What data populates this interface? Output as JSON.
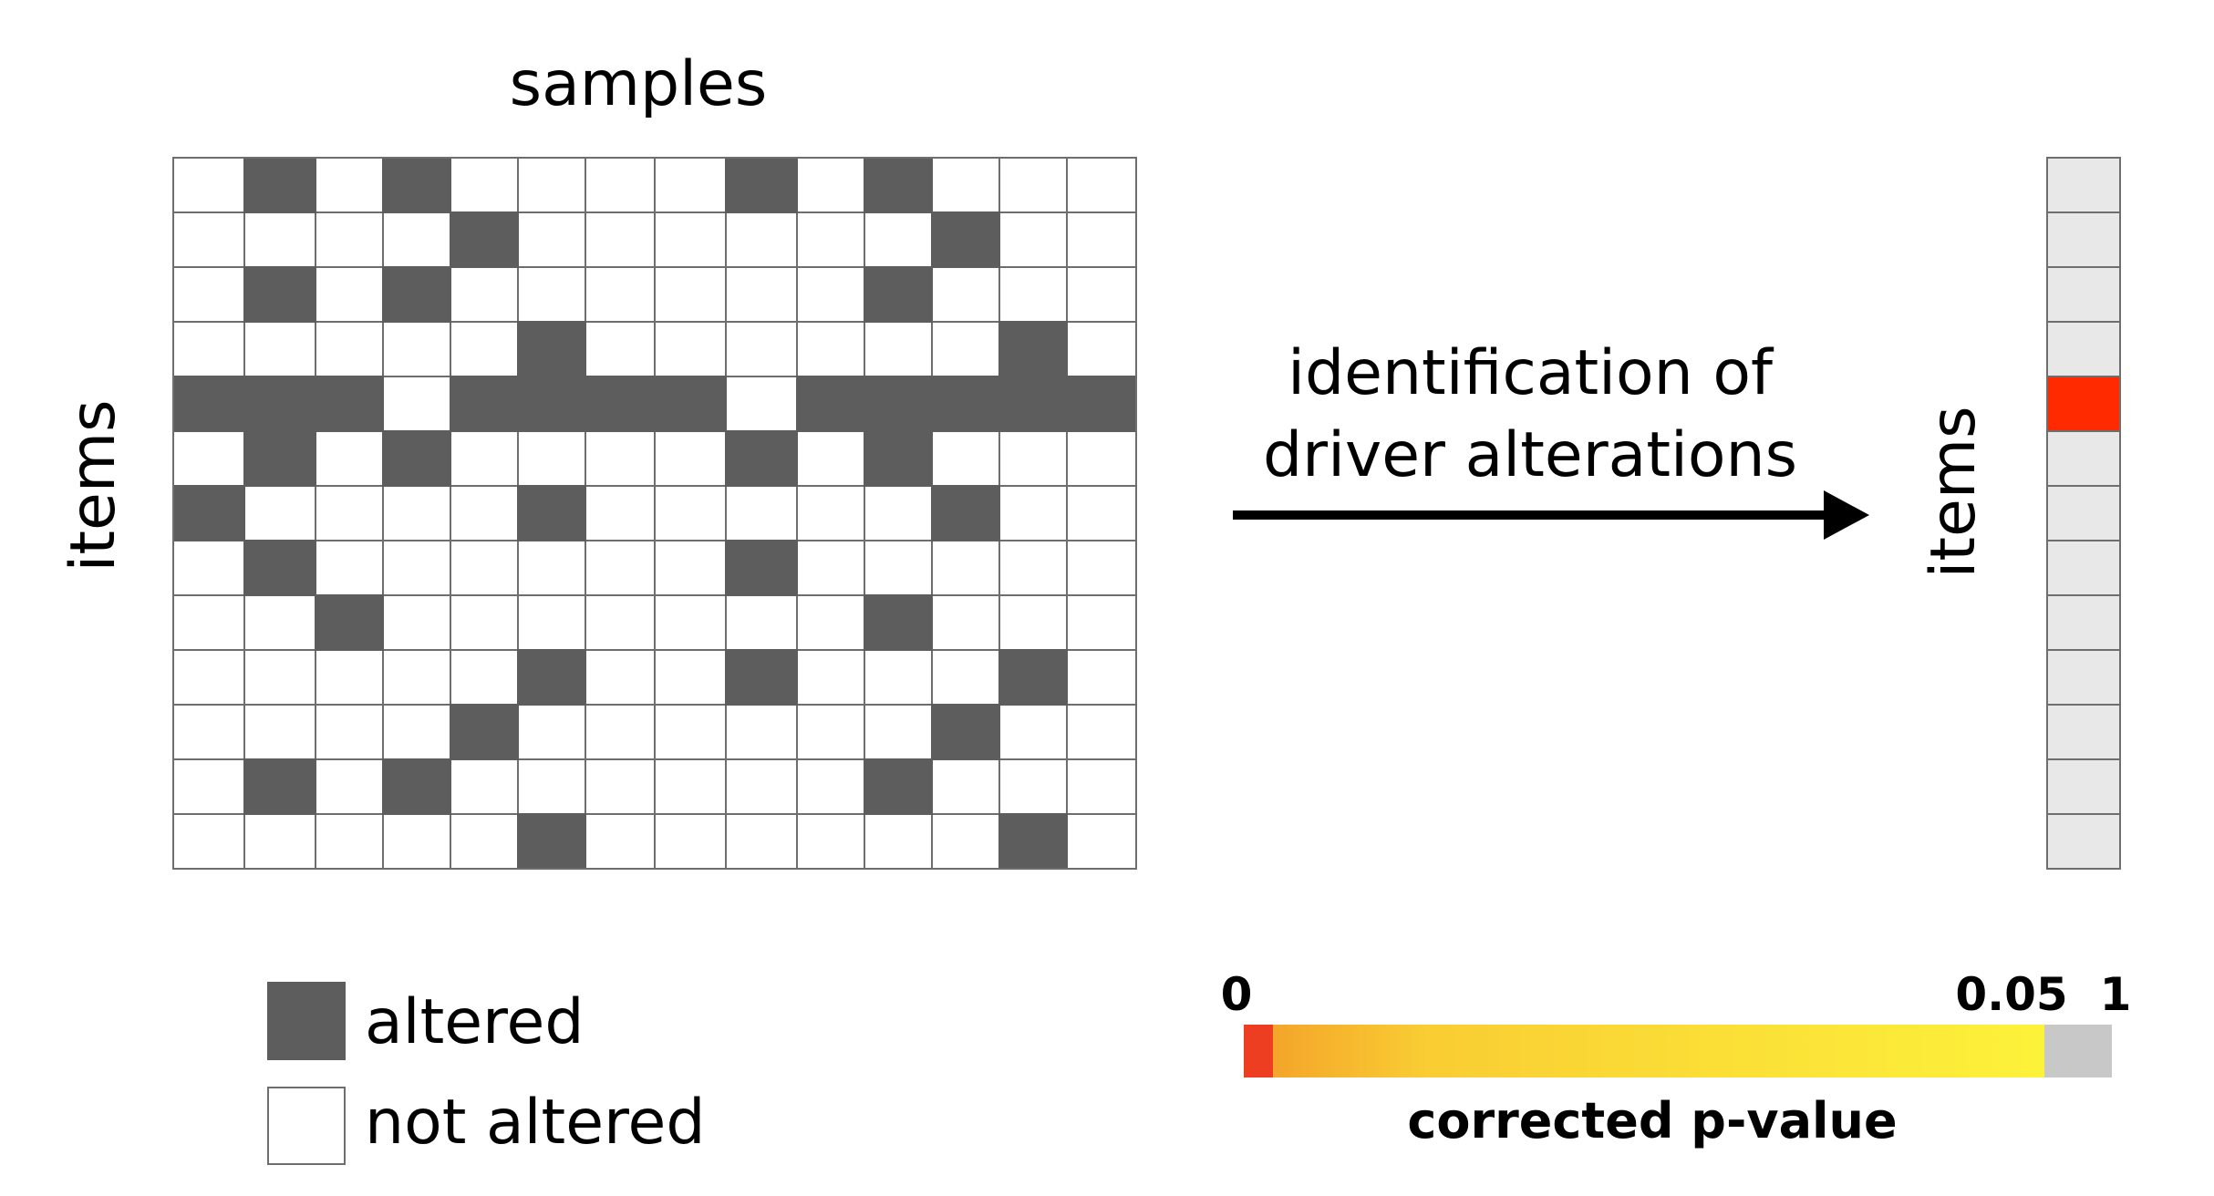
{
  "labels": {
    "samples": "samples",
    "items_left": "items",
    "items_right": "items",
    "arrow_line1": "identification of",
    "arrow_line2": "driver alterations",
    "legend_altered": "altered",
    "legend_not_altered": "not altered",
    "colorbar_title": "corrected p-value",
    "tick_0": "0",
    "tick_005": "0.05",
    "tick_1": "1"
  },
  "matrix": [
    [
      0,
      1,
      0,
      1,
      0,
      0,
      0,
      0,
      1,
      0,
      1,
      0,
      0,
      0
    ],
    [
      0,
      0,
      0,
      0,
      1,
      0,
      0,
      0,
      0,
      0,
      0,
      1,
      0,
      0
    ],
    [
      0,
      1,
      0,
      1,
      0,
      0,
      0,
      0,
      0,
      0,
      1,
      0,
      0,
      0
    ],
    [
      0,
      0,
      0,
      0,
      0,
      1,
      0,
      0,
      0,
      0,
      0,
      0,
      1,
      0
    ],
    [
      1,
      1,
      1,
      0,
      1,
      1,
      1,
      1,
      0,
      1,
      1,
      1,
      1,
      1
    ],
    [
      0,
      1,
      0,
      1,
      0,
      0,
      0,
      0,
      1,
      0,
      1,
      0,
      0,
      0
    ],
    [
      1,
      0,
      0,
      0,
      0,
      1,
      0,
      0,
      0,
      0,
      0,
      1,
      0,
      0
    ],
    [
      0,
      1,
      0,
      0,
      0,
      0,
      0,
      0,
      1,
      0,
      0,
      0,
      0,
      0
    ],
    [
      0,
      0,
      1,
      0,
      0,
      0,
      0,
      0,
      0,
      0,
      1,
      0,
      0,
      0
    ],
    [
      0,
      0,
      0,
      0,
      0,
      1,
      0,
      0,
      1,
      0,
      0,
      0,
      1,
      0
    ],
    [
      0,
      0,
      0,
      0,
      1,
      0,
      0,
      0,
      0,
      0,
      0,
      1,
      0,
      0
    ],
    [
      0,
      1,
      0,
      1,
      0,
      0,
      0,
      0,
      0,
      0,
      1,
      0,
      0,
      0
    ],
    [
      0,
      0,
      0,
      0,
      0,
      1,
      0,
      0,
      0,
      0,
      0,
      0,
      1,
      0
    ]
  ],
  "result_column_pvalue": [
    "ns",
    "ns",
    "ns",
    "ns",
    "sig",
    "ns",
    "ns",
    "ns",
    "ns",
    "ns",
    "ns",
    "ns",
    "ns"
  ],
  "colors": {
    "altered": "#5d5d5d",
    "not_altered": "#ffffff",
    "grid": "#6e6e6e",
    "nonsignificant": "#e8e8e8",
    "significant": "#ff2a00",
    "gradient_low": "#ee3e22",
    "gradient_mid": "#f8c830",
    "gradient_high": "#fdf23a"
  }
}
